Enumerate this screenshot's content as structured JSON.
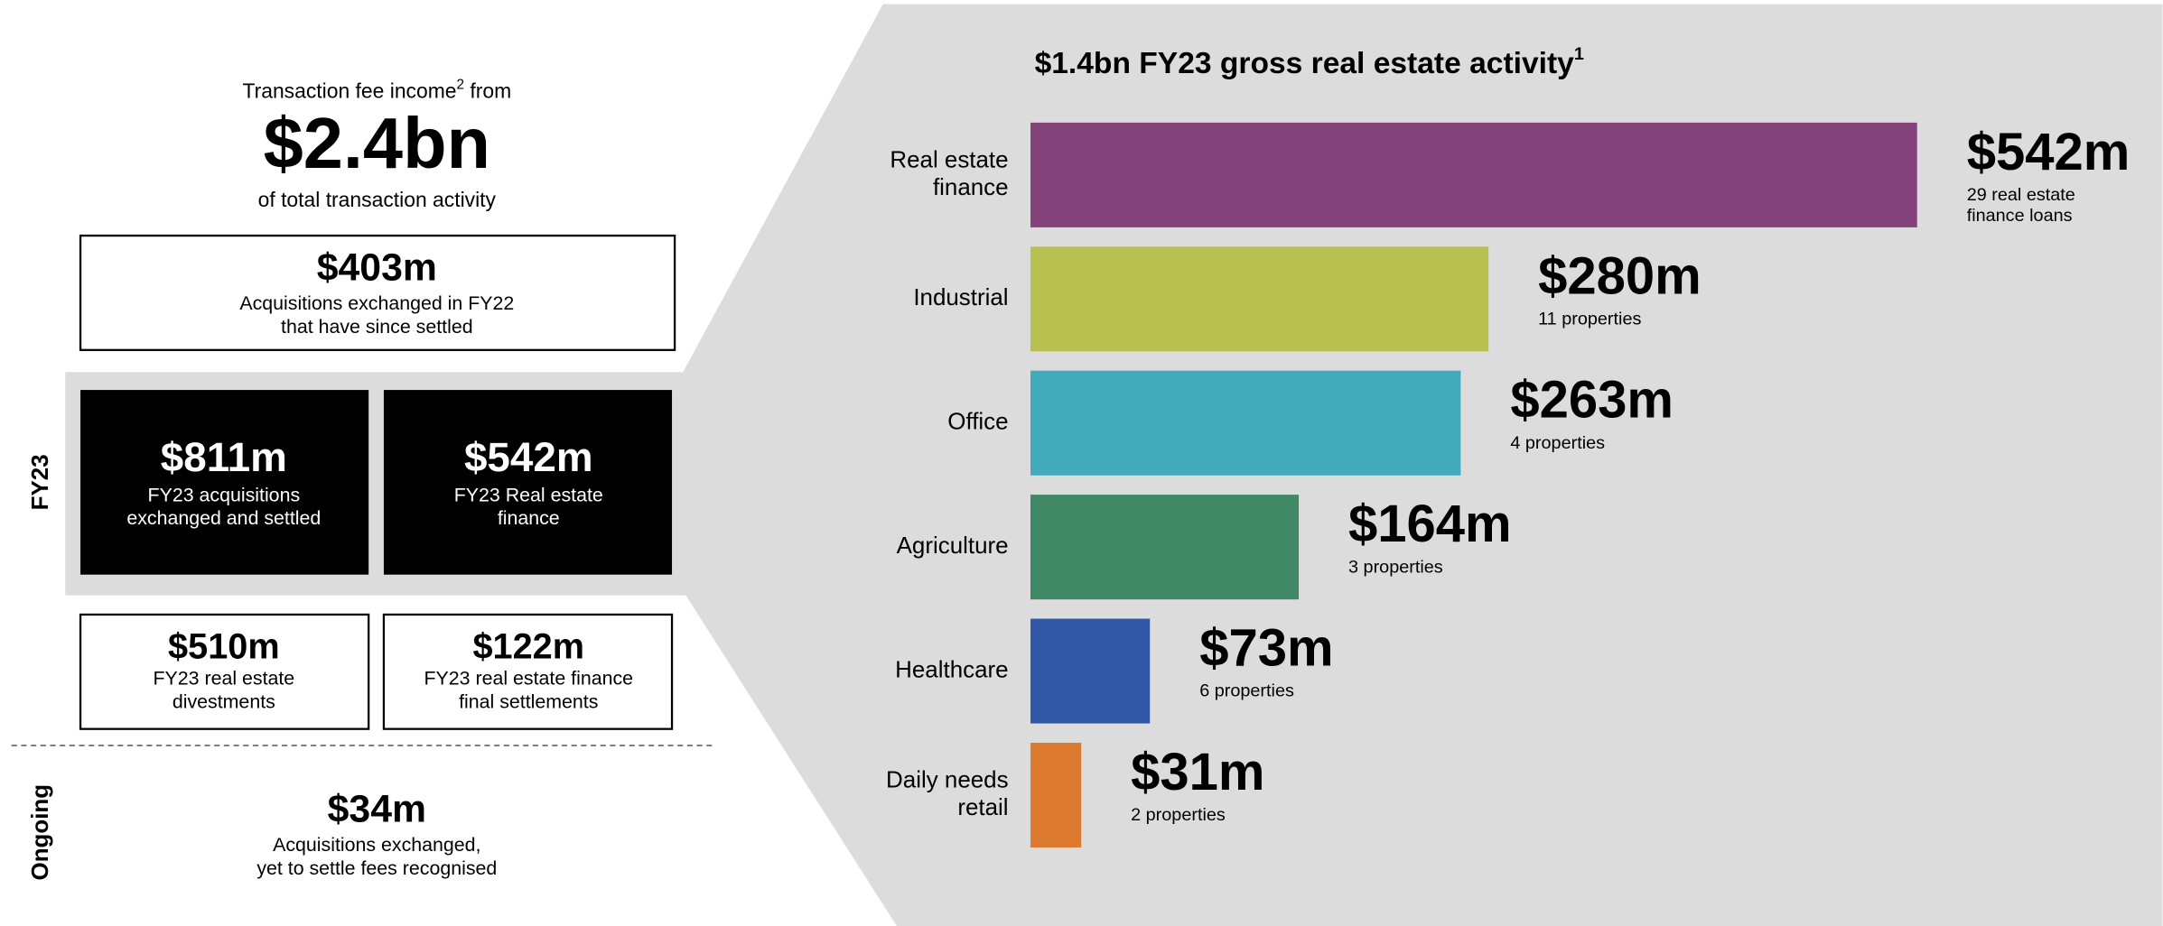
{
  "left": {
    "intro": {
      "prefix": "Transaction fee income",
      "sup": "2",
      "suffix": " from",
      "amount": "$2.4bn",
      "caption": "of total transaction activity"
    },
    "fy22_box": {
      "amount": "$403m",
      "lines": [
        "Acquisitions exchanged in FY22",
        "that have since settled"
      ]
    },
    "fy23_label": "FY23",
    "fy23_boxes": [
      {
        "amount": "$811m",
        "lines": [
          "FY23 acquisitions",
          "exchanged and settled"
        ]
      },
      {
        "amount": "$542m",
        "lines": [
          "FY23 Real estate",
          "finance"
        ]
      }
    ],
    "other_boxes": [
      {
        "amount": "$510m",
        "lines": [
          "FY23 real estate",
          "divestments"
        ]
      },
      {
        "amount": "$122m",
        "lines": [
          "FY23 real estate finance",
          "final settlements"
        ]
      }
    ],
    "ongoing_label": "Ongoing",
    "ongoing": {
      "amount": "$34m",
      "lines": [
        "Acquisitions exchanged,",
        "yet to settle fees recognised"
      ]
    }
  },
  "chart_data": {
    "type": "hbar",
    "title": "$1.4bn FY23 gross real estate activity",
    "title_sup": "1",
    "categories": [
      [
        "Real estate",
        "finance"
      ],
      [
        "Industrial"
      ],
      [
        "Office"
      ],
      [
        "Agriculture"
      ],
      [
        "Healthcare"
      ],
      [
        "Daily needs",
        "retail"
      ]
    ],
    "values": [
      542,
      280,
      263,
      164,
      73,
      31
    ],
    "value_labels": [
      "$542m",
      "$280m",
      "$263m",
      "$164m",
      "$73m",
      "$31m"
    ],
    "descriptions": [
      [
        "29 real estate",
        "finance loans"
      ],
      [
        "11 properties"
      ],
      [
        "4 properties"
      ],
      [
        "3 properties"
      ],
      [
        "6 properties"
      ],
      [
        "2 properties"
      ]
    ],
    "colors": [
      "#84427a",
      "#b8c04f",
      "#41aabb",
      "#418866",
      "#3357a7",
      "#dc7a30"
    ]
  }
}
